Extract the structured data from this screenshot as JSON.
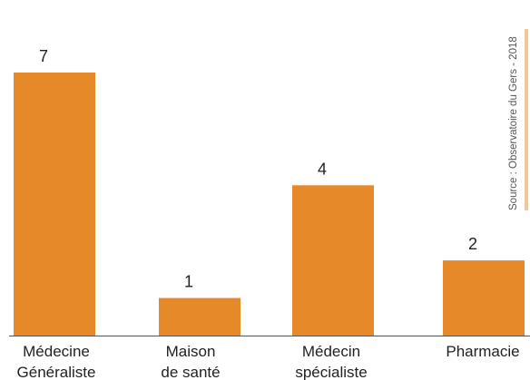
{
  "chart_data": {
    "type": "bar",
    "categories": [
      [
        "Médecine",
        "Généraliste"
      ],
      [
        "Maison",
        "de santé"
      ],
      [
        "Médecin",
        "spécialiste"
      ],
      [
        "Pharmacie"
      ]
    ],
    "values": [
      7,
      1,
      4,
      2
    ],
    "ylim": [
      0,
      7.3
    ],
    "grid": false,
    "bar_color": "#E68A29",
    "baseline_color": "#555555",
    "source": "Source : Observatoire du Gers - 2018",
    "source_accent": "#F1C79A"
  }
}
